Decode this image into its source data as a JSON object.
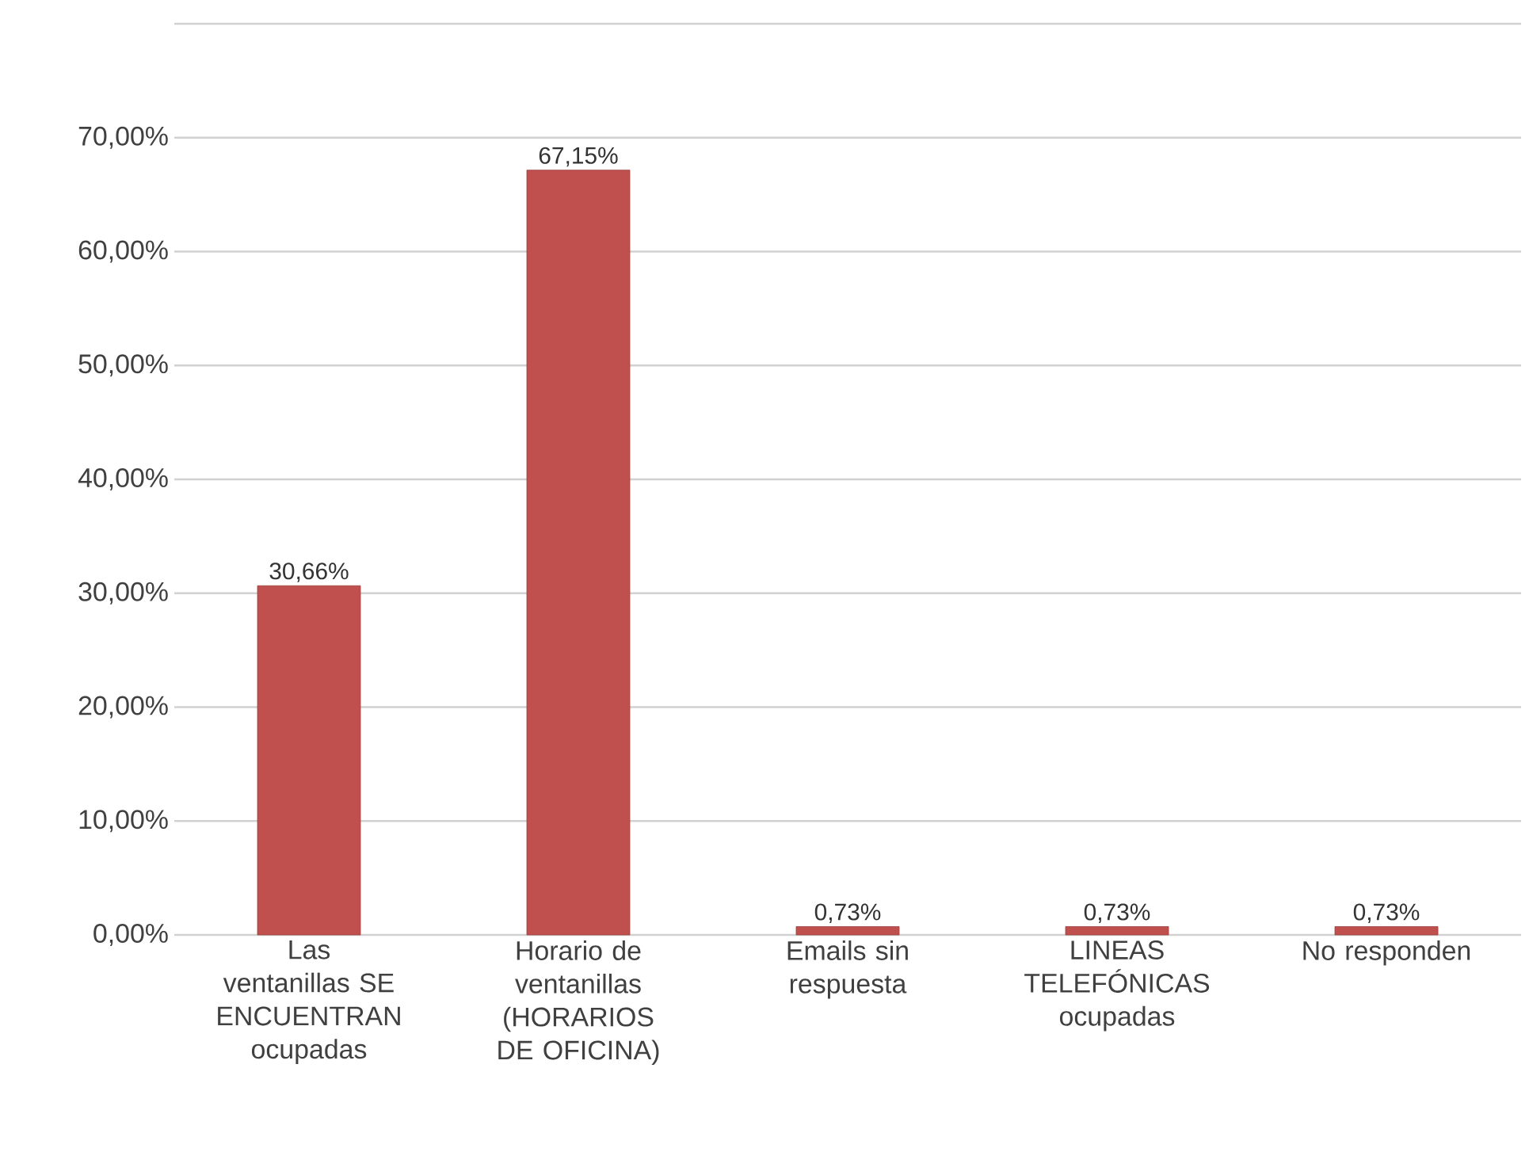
{
  "chart_data": {
    "type": "bar",
    "categories": [
      "Las ventanillas SE ENCUENTRAN ocupadas",
      "Horario de ventanillas (HORARIOS DE OFICINA)",
      "Emails sin respuesta",
      "LINEAS TELEFÓNICAS ocupadas",
      "No responden"
    ],
    "values": [
      30.66,
      67.15,
      0.73,
      0.73,
      0.73
    ],
    "value_labels": [
      "30,66%",
      "67,15%",
      "0,73%",
      "0,73%",
      "0,73%"
    ],
    "color": "#c0504d",
    "ylim": [
      0,
      80
    ],
    "yticks": [
      {
        "value": 0,
        "label": "0,00%"
      },
      {
        "value": 10,
        "label": "10,00%"
      },
      {
        "value": 20,
        "label": "20,00%"
      },
      {
        "value": 30,
        "label": "30,00%"
      },
      {
        "value": 40,
        "label": "40,00%"
      },
      {
        "value": 50,
        "label": "50,00%"
      },
      {
        "value": 60,
        "label": "60,00%"
      },
      {
        "value": 70,
        "label": "70,00%"
      },
      {
        "value": 80,
        "label": null
      }
    ],
    "grid": "y"
  }
}
